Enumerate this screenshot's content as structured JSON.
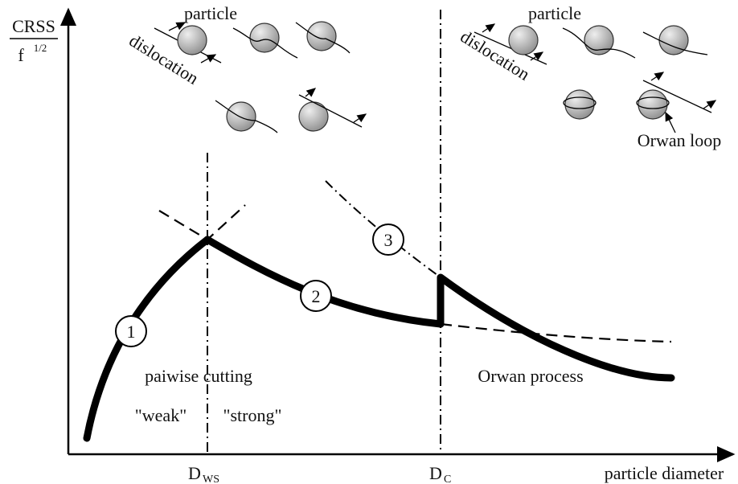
{
  "y_axis": {
    "numerator": "CRSS",
    "denominator": "f",
    "exponent": "1/2"
  },
  "x_axis": {
    "label": "particle diameter"
  },
  "markers": [
    {
      "main": "D",
      "sub": "WS"
    },
    {
      "main": "D",
      "sub": "C"
    }
  ],
  "left_inset": {
    "particle": "particle",
    "dislocation": "dislocation"
  },
  "right_inset": {
    "particle": "particle",
    "dislocation": "dislocation",
    "loop": "Orwan loop"
  },
  "curve_labels": [
    "1",
    "2",
    "3"
  ],
  "regions": {
    "cutting": "paiwise cutting",
    "weak": "\"weak\"",
    "strong": "\"strong\"",
    "orwan": "Orwan process"
  }
}
